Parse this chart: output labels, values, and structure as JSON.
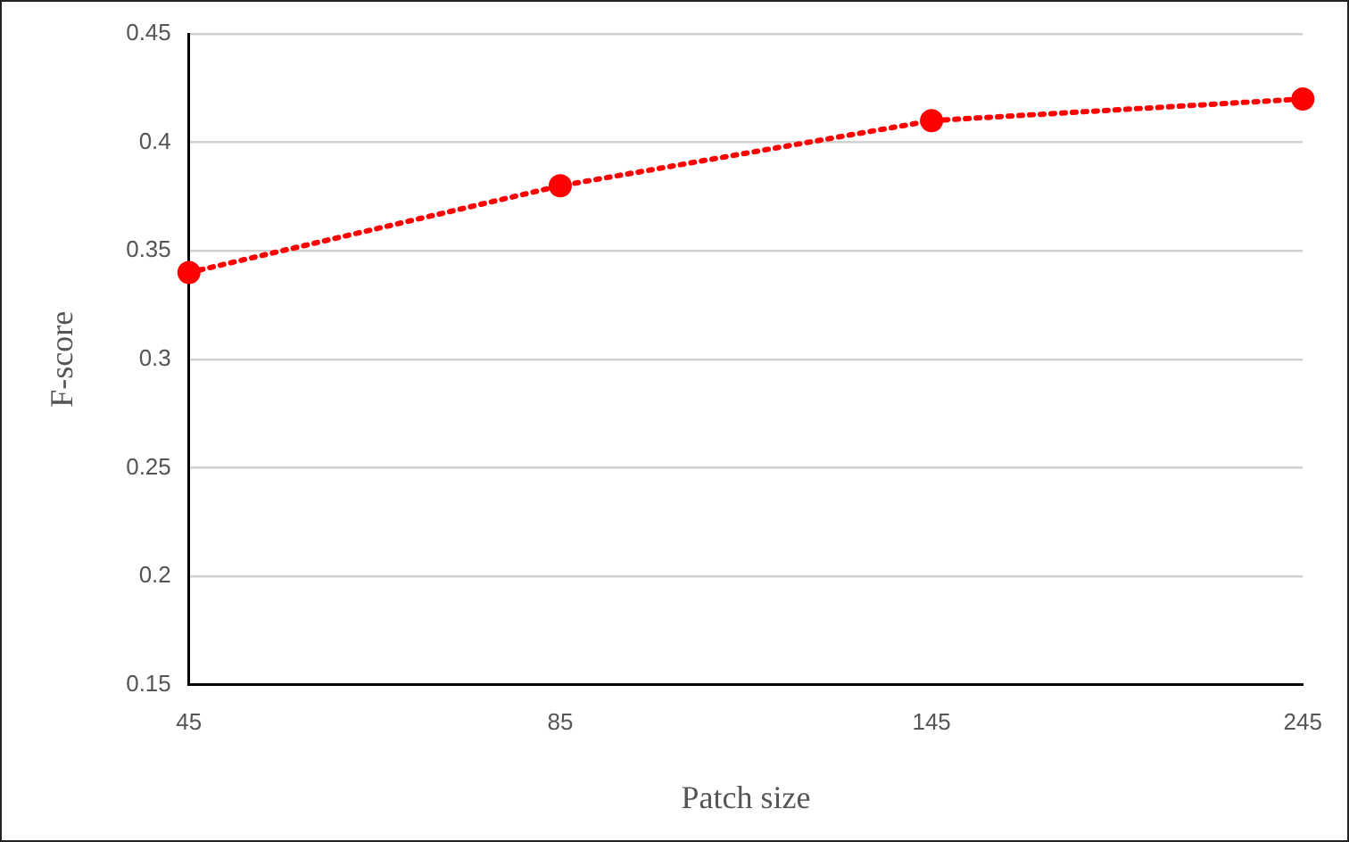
{
  "chart_data": {
    "type": "line",
    "xlabel": "Patch size",
    "ylabel": "F-score",
    "categories": [
      "45",
      "85",
      "145",
      "245"
    ],
    "series": [
      {
        "color": "#ff0000",
        "values": [
          0.34,
          0.38,
          0.41,
          0.42
        ]
      }
    ],
    "ylim": [
      0.15,
      0.45
    ],
    "yticks": [
      0.15,
      0.2,
      0.25,
      0.3,
      0.35,
      0.4,
      0.45
    ],
    "grid": "y",
    "legend": false,
    "marker": "circle",
    "line_style": "dotted"
  }
}
